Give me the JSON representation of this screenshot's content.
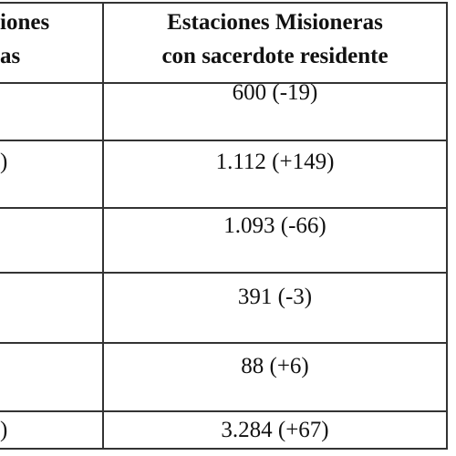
{
  "table": {
    "header": {
      "left": [
        "iones",
        "as"
      ],
      "right": [
        "Estaciones Misioneras",
        "con sacerdote residente"
      ]
    },
    "rows": [
      {
        "right": "600 (-19)"
      },
      {
        "left": ")",
        "right": "1.112 (+149)"
      },
      {
        "right": "1.093 (-66)"
      },
      {
        "right": "391 (-3)"
      },
      {
        "right": "88 (+6)"
      },
      {
        "left": ")",
        "right": "3.284 (+67)"
      }
    ]
  }
}
